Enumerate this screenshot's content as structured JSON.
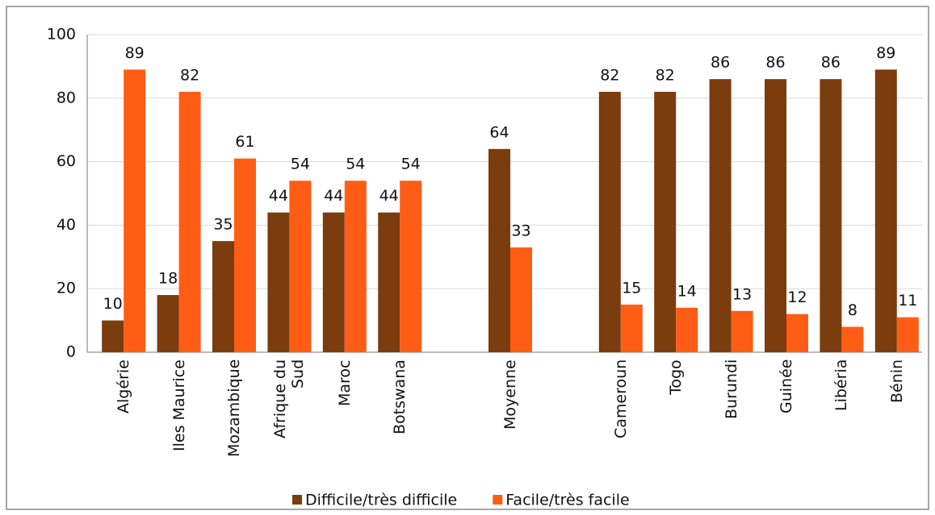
{
  "chart_data": {
    "type": "bar",
    "categories": [
      "Algérie",
      "Iles Maurice",
      "Mozambique",
      "Afrique du Sud",
      "Maroc",
      "Botswana",
      null,
      "Moyenne",
      null,
      "Cameroun",
      "Togo",
      "Burundi",
      "Guinée",
      "Libéria",
      "Bénin"
    ],
    "series": [
      {
        "name": "Difficile/très difficile",
        "color": "#7b3c0e",
        "values": [
          10,
          18,
          35,
          44,
          44,
          44,
          null,
          64,
          null,
          82,
          82,
          86,
          86,
          86,
          89
        ]
      },
      {
        "name": "Facile/très facile",
        "color": "#ff5c16",
        "values": [
          89,
          82,
          61,
          54,
          54,
          54,
          null,
          33,
          null,
          15,
          14,
          13,
          12,
          8,
          11
        ]
      }
    ],
    "ylim": [
      0,
      100
    ],
    "yticks": [
      0,
      20,
      40,
      60,
      80,
      100
    ],
    "grid": true,
    "legend": "bottom"
  }
}
